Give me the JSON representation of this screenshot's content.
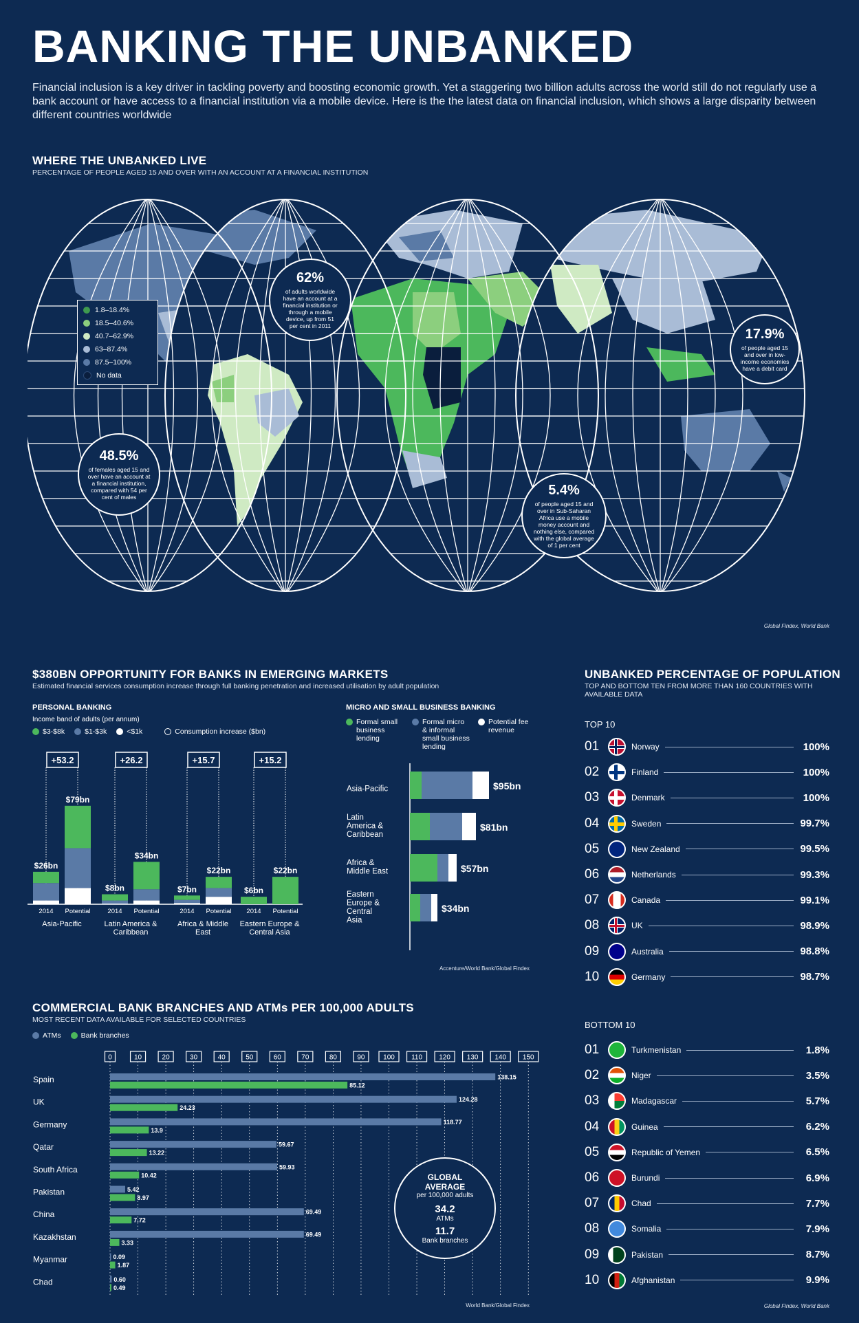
{
  "header": {
    "title": "BANKING THE UNBANKED",
    "intro": "Financial inclusion is a key driver in tackling poverty and boosting economic growth. Yet a staggering two billion adults across the world still do not regularly use a bank account or have access to a financial institution via a mobile device. Here is the the latest data on financial inclusion, which shows a large disparity between different countries worldwide"
  },
  "map_section": {
    "title": "WHERE THE UNBANKED LIVE",
    "subtitle": "PERCENTAGE OF PEOPLE AGED 15 AND OVER WITH AN ACCOUNT AT A FINANCIAL INSTITUTION",
    "legend": [
      {
        "label": "1.8–18.4%",
        "color": "#3f9a4f"
      },
      {
        "label": "18.5–40.6%",
        "color": "#8ccf7e"
      },
      {
        "label": "40.7–62.9%",
        "color": "#cfeac3"
      },
      {
        "label": "63–87.4%",
        "color": "#a9bcd6"
      },
      {
        "label": "87.5–100%",
        "color": "#5a7aa6"
      },
      {
        "label": "No data",
        "color": "#0a1e3d"
      }
    ],
    "callouts": [
      {
        "value": "62%",
        "text": "of adults worldwide have an account at a financial institution or through a mobile device, up from 51 per cent in 2011"
      },
      {
        "value": "48.5%",
        "text": "of females aged 15 and over have an account at a financial institution, compared with 54 per cent of males"
      },
      {
        "value": "17.9%",
        "text": "of people aged 15 and over in low-income economies have a debit card"
      },
      {
        "value": "5.4%",
        "text": "of people aged 15 and over in Sub-Saharan Africa use a mobile money account and nothing else, compared with the global average of 1 per cent"
      }
    ],
    "source": "Global Findex, World Bank"
  },
  "opportunity": {
    "title": "$380BN OPPORTUNITY FOR BANKS IN EMERGING MARKETS",
    "subtitle": "Estimated financial services consumption increase through full banking penetration and increased utilisation by adult population",
    "personal": {
      "title": "PERSONAL BANKING",
      "subtitle": "Income band of adults (per annum)",
      "legend": [
        {
          "label": "$3-$8k",
          "color": "#4cb85c"
        },
        {
          "label": "$1-$3k",
          "color": "#5a7aa6"
        },
        {
          "label": "<$1k",
          "color": "#ffffff"
        },
        {
          "label": "Consumption increase ($bn)",
          "color": "outline"
        }
      ]
    },
    "micro": {
      "title": "MICRO AND SMALL BUSINESS BANKING",
      "legend": [
        {
          "label": "Formal small business lending",
          "color": "#4cb85c"
        },
        {
          "label": "Formal micro & informal small business lending",
          "color": "#5a7aa6"
        },
        {
          "label": "Potential fee revenue",
          "color": "#ffffff"
        }
      ]
    },
    "source": "Accenture/World Bank/Global Findex"
  },
  "chart_data": [
    {
      "type": "bar",
      "title": "PERSONAL BANKING",
      "subtitle": "Income band of adults (per annum)",
      "groups": [
        {
          "region": "Asia-Pacific",
          "increase": "+53.2",
          "bars": [
            {
              "label": "2014",
              "total": "$26bn",
              "value": 26,
              "green": 9,
              "blue": 14,
              "white": 3
            },
            {
              "label": "Potential",
              "total": "$79bn",
              "value": 79,
              "green": 34,
              "blue": 32,
              "white": 13
            }
          ]
        },
        {
          "region": "Latin America & Caribbean",
          "increase": "+26.2",
          "bars": [
            {
              "label": "2014",
              "total": "$8bn",
              "value": 8,
              "green": 5,
              "blue": 2.5,
              "white": 0.5
            },
            {
              "label": "Potential",
              "total": "$34bn",
              "value": 34,
              "green": 22,
              "blue": 9,
              "white": 3
            }
          ]
        },
        {
          "region": "Africa & Middle East",
          "increase": "+15.7",
          "bars": [
            {
              "label": "2014",
              "total": "$7bn",
              "value": 7,
              "green": 3.5,
              "blue": 2.5,
              "white": 1
            },
            {
              "label": "Potential",
              "total": "$22bn",
              "value": 22,
              "green": 9,
              "blue": 7,
              "white": 6
            }
          ]
        },
        {
          "region": "Eastern Europe & Central Asia",
          "increase": "+15.2",
          "bars": [
            {
              "label": "2014",
              "total": "$6bn",
              "value": 6,
              "green": 6,
              "blue": 0,
              "white": 0
            },
            {
              "label": "Potential",
              "total": "$22bn",
              "value": 22,
              "green": 22,
              "blue": 0,
              "white": 0
            }
          ]
        }
      ]
    },
    {
      "type": "bar",
      "title": "MICRO AND SMALL BUSINESS BANKING",
      "categories": [
        "Asia-Pacific",
        "Latin America & Caribbean",
        "Africa & Middle East",
        "Eastern Europe & Central Asia"
      ],
      "totals": [
        "$95bn",
        "$81bn",
        "$57bn",
        "$34bn"
      ],
      "series": [
        {
          "name": "Formal small business lending",
          "values": [
            17,
            29,
            40,
            15
          ]
        },
        {
          "name": "Formal micro & informal small business lending",
          "values": [
            74,
            47,
            16,
            16
          ]
        },
        {
          "name": "Potential fee revenue",
          "values": [
            24,
            20,
            12,
            9
          ]
        }
      ]
    },
    {
      "type": "bar",
      "title": "COMMERCIAL BANK BRANCHES AND ATMs PER 100,000 ADULTS",
      "subtitle": "MOST RECENT DATA AVAILABLE FOR SELECTED COUNTRIES",
      "categories": [
        "Spain",
        "UK",
        "Germany",
        "Qatar",
        "South Africa",
        "Pakistan",
        "China",
        "Kazakhstan",
        "Myanmar",
        "Chad"
      ],
      "series": [
        {
          "name": "ATMs",
          "color": "#5a7aa6",
          "values": [
            138.15,
            124.28,
            118.77,
            59.67,
            59.93,
            5.42,
            69.49,
            69.49,
            0.09,
            0.6
          ]
        },
        {
          "name": "Bank branches",
          "color": "#4cb85c",
          "values": [
            85.12,
            24.23,
            13.9,
            13.22,
            10.42,
            8.97,
            7.72,
            3.33,
            1.87,
            0.49
          ]
        }
      ],
      "ticks": [
        "0",
        "10",
        "20",
        "30",
        "40",
        "50",
        "60",
        "70",
        "80",
        "90",
        "100",
        "110",
        "120",
        "130",
        "140",
        "150"
      ],
      "xlim": [
        0,
        150
      ]
    }
  ],
  "branches": {
    "title": "COMMERCIAL BANK BRANCHES AND ATMs PER 100,000 ADULTS",
    "subtitle": "MOST RECENT DATA AVAILABLE FOR SELECTED COUNTRIES",
    "legend": [
      {
        "label": "ATMs",
        "color": "#5a7aa6"
      },
      {
        "label": "Bank branches",
        "color": "#4cb85c"
      }
    ],
    "global_average": {
      "heading": "GLOBAL AVERAGE",
      "per": "per 100,000 adults",
      "atm_value": "34.2",
      "atm_label": "ATMs",
      "branch_value": "11.7",
      "branch_label": "Bank branches"
    },
    "source": "World Bank/Global Findex"
  },
  "unbanked": {
    "title": "UNBANKED PERCENTAGE OF POPULATION",
    "subtitle": "TOP AND BOTTOM TEN FROM MORE THAN 160 COUNTRIES WITH AVAILABLE DATA",
    "top_label": "TOP 10",
    "bottom_label": "BOTTOM 10",
    "top": [
      {
        "rank": "01",
        "country": "Norway",
        "value": "100%",
        "flag": "norway"
      },
      {
        "rank": "02",
        "country": "Finland",
        "value": "100%",
        "flag": "finland"
      },
      {
        "rank": "03",
        "country": "Denmark",
        "value": "100%",
        "flag": "denmark"
      },
      {
        "rank": "04",
        "country": "Sweden",
        "value": "99.7%",
        "flag": "sweden"
      },
      {
        "rank": "05",
        "country": "New Zealand",
        "value": "99.5%",
        "flag": "newzealand"
      },
      {
        "rank": "06",
        "country": "Netherlands",
        "value": "99.3%",
        "flag": "netherlands"
      },
      {
        "rank": "07",
        "country": "Canada",
        "value": "99.1%",
        "flag": "canada"
      },
      {
        "rank": "08",
        "country": "UK",
        "value": "98.9%",
        "flag": "uk"
      },
      {
        "rank": "09",
        "country": "Australia",
        "value": "98.8%",
        "flag": "australia"
      },
      {
        "rank": "10",
        "country": "Germany",
        "value": "98.7%",
        "flag": "germany"
      }
    ],
    "bottom": [
      {
        "rank": "01",
        "country": "Turkmenistan",
        "value": "1.8%",
        "flag": "turkmenistan"
      },
      {
        "rank": "02",
        "country": "Niger",
        "value": "3.5%",
        "flag": "niger"
      },
      {
        "rank": "03",
        "country": "Madagascar",
        "value": "5.7%",
        "flag": "madagascar"
      },
      {
        "rank": "04",
        "country": "Guinea",
        "value": "6.2%",
        "flag": "guinea"
      },
      {
        "rank": "05",
        "country": "Republic of Yemen",
        "value": "6.5%",
        "flag": "yemen"
      },
      {
        "rank": "06",
        "country": "Burundi",
        "value": "6.9%",
        "flag": "burundi"
      },
      {
        "rank": "07",
        "country": "Chad",
        "value": "7.7%",
        "flag": "chad"
      },
      {
        "rank": "08",
        "country": "Somalia",
        "value": "7.9%",
        "flag": "somalia"
      },
      {
        "rank": "09",
        "country": "Pakistan",
        "value": "8.7%",
        "flag": "pakistan"
      },
      {
        "rank": "10",
        "country": "Afghanistan",
        "value": "9.9%",
        "flag": "afghanistan"
      }
    ],
    "source": "Global Findex, World Bank"
  }
}
